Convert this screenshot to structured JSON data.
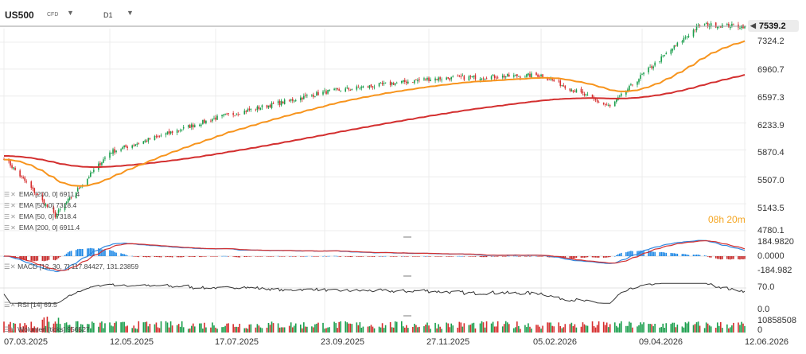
{
  "toolbar": {
    "symbol": "US500",
    "symbol_type": "CFD",
    "timeframe": "D1",
    "dropdown_glyph": "▼"
  },
  "legend": [
    {
      "label": "EMA [200, 0] 6911.4"
    },
    {
      "label": "EMA [50, 0] 7318.4"
    },
    {
      "label": "EMA [50, 0] 7318.4"
    },
    {
      "label": "EMA [200, 0] 6911.4"
    }
  ],
  "price_box": {
    "value": "7539.2"
  },
  "countdown": "08h 20m",
  "panels": {
    "macd_label": "MACD [12, 30, 7] 117.84427, 131.23859",
    "rsi_label": "RSI [14] 69.5",
    "volume_label": "Wolumen [ticks] 956527"
  },
  "colors": {
    "bull_candle": "#1a9e4c",
    "bear_candle": "#d62d2d",
    "ema50": "#f7941d",
    "ema200": "#d32f2f",
    "macd_line": "#2e86de",
    "signal_line": "#d32f2f",
    "rsi_line": "#333333",
    "grid": "#ececec"
  },
  "chart_data": [
    {
      "type": "candlestick",
      "title": "US500",
      "x_ticks": [
        "07.03.2025",
        "12.05.2025",
        "17.07.2025",
        "23.09.2025",
        "27.11.2025",
        "05.02.2026",
        "09.04.2026",
        "12.06.2026"
      ],
      "y_ticks": [
        "7324.2",
        "6960.7",
        "6597.3",
        "6233.9",
        "5870.4",
        "5507.0",
        "5143.5",
        "4780.1"
      ],
      "ylim": [
        4780.1,
        7539.2
      ],
      "last_price": 7539.2,
      "close_key_points": [
        {
          "date": "07.03.2025",
          "close": 5770
        },
        {
          "date": "04.04.2025",
          "close": 5080
        },
        {
          "date": "08.04.2025",
          "close": 4982
        },
        {
          "date": "12.05.2025",
          "close": 5840
        },
        {
          "date": "17.07.2025",
          "close": 6300
        },
        {
          "date": "23.09.2025",
          "close": 6650
        },
        {
          "date": "27.11.2025",
          "close": 6830
        },
        {
          "date": "05.02.2026",
          "close": 6880
        },
        {
          "date": "20.03.2026",
          "close": 6450
        },
        {
          "date": "09.04.2026",
          "close": 6880
        },
        {
          "date": "15.05.2026",
          "close": 7560
        },
        {
          "date": "12.06.2026",
          "close": 7539.2
        }
      ],
      "series": [
        {
          "name": "EMA [200, 0]",
          "last": 6911.4
        },
        {
          "name": "EMA [50, 0]",
          "last": 7318.4
        }
      ]
    },
    {
      "type": "line",
      "title": "MACD [12, 30, 7]",
      "y_ticks": [
        "184.9820",
        "0.0000",
        "-184.982"
      ],
      "ylim": [
        -184.982,
        184.982
      ],
      "series": [
        {
          "name": "MACD",
          "last": 117.84427
        },
        {
          "name": "Signal",
          "last": 131.23859
        }
      ]
    },
    {
      "type": "line",
      "title": "RSI [14]",
      "y_ticks": [
        "70.0",
        "0.0"
      ],
      "series": [
        {
          "name": "RSI",
          "last": 69.5
        }
      ]
    },
    {
      "type": "bar",
      "title": "Wolumen [ticks]",
      "y_ticks": [
        "10858508",
        "0"
      ],
      "series": [
        {
          "name": "Wolumen",
          "last": 956527
        }
      ]
    }
  ]
}
